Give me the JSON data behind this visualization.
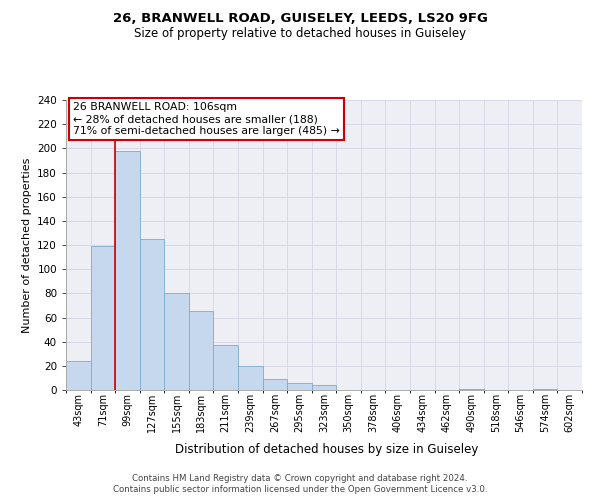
{
  "title": "26, BRANWELL ROAD, GUISELEY, LEEDS, LS20 9FG",
  "subtitle": "Size of property relative to detached houses in Guiseley",
  "xlabel": "Distribution of detached houses by size in Guiseley",
  "ylabel": "Number of detached properties",
  "bin_labels": [
    "43sqm",
    "71sqm",
    "99sqm",
    "127sqm",
    "155sqm",
    "183sqm",
    "211sqm",
    "239sqm",
    "267sqm",
    "295sqm",
    "323sqm",
    "350sqm",
    "378sqm",
    "406sqm",
    "434sqm",
    "462sqm",
    "490sqm",
    "518sqm",
    "546sqm",
    "574sqm",
    "602sqm"
  ],
  "bar_heights": [
    24,
    119,
    198,
    125,
    80,
    65,
    37,
    20,
    9,
    6,
    4,
    0,
    0,
    0,
    0,
    0,
    1,
    0,
    0,
    1,
    0
  ],
  "bar_color": "#c5d8ed",
  "bar_edge_color": "#7aadcf",
  "vline_x_index": 2,
  "vline_color": "#cc0000",
  "annotation_line1": "26 BRANWELL ROAD: 106sqm",
  "annotation_line2": "← 28% of detached houses are smaller (188)",
  "annotation_line3": "71% of semi-detached houses are larger (485) →",
  "annotation_box_color": "#ffffff",
  "annotation_box_edge": "#cc0000",
  "ylim": [
    0,
    240
  ],
  "yticks": [
    0,
    20,
    40,
    60,
    80,
    100,
    120,
    140,
    160,
    180,
    200,
    220,
    240
  ],
  "grid_color": "#d8d8e8",
  "bg_color": "#eeeef5",
  "footer_line1": "Contains HM Land Registry data © Crown copyright and database right 2024.",
  "footer_line2": "Contains public sector information licensed under the Open Government Licence v3.0."
}
